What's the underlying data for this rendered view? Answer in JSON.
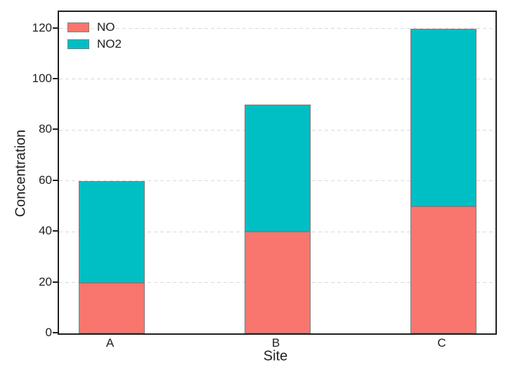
{
  "chart_data": {
    "type": "bar",
    "stacked": true,
    "title": "",
    "xlabel": "Site",
    "ylabel": "Concentration",
    "categories": [
      "A",
      "B",
      "C"
    ],
    "series": [
      {
        "name": "NO",
        "color": "#F8766D",
        "values": [
          20,
          40,
          50
        ]
      },
      {
        "name": "NO2",
        "color": "#00BFC4",
        "values": [
          40,
          50,
          70
        ]
      }
    ],
    "totals": [
      60,
      90,
      120
    ],
    "ylim": [
      0,
      126.5
    ],
    "yticks": [
      0,
      20,
      40,
      60,
      80,
      100,
      120
    ],
    "grid": "horizontal dashed",
    "legend_position": "upper left",
    "colors": {
      "bar_edge": "#7f7f7f",
      "grid": "#d9d9d9",
      "axis": "#1f1f1f",
      "text": "#1f1f1f"
    }
  }
}
